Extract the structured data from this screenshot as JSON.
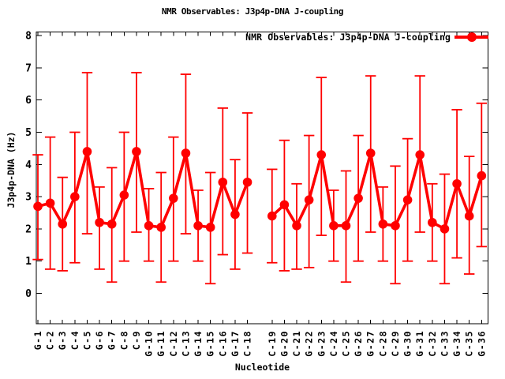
{
  "chart_data": {
    "type": "line",
    "title": "NMR Observables: J3p4p-DNA J-coupling",
    "xlabel": "Nucleotide",
    "ylabel": "J3p4p-DNA (Hz)",
    "legend": {
      "label": "NMR Observables: J3p4p-DNA J-coupling",
      "position": "top-right-inside",
      "marker": "filled-circle-on-line"
    },
    "ylim": [
      0,
      8
    ],
    "yticks": [
      0,
      1,
      2,
      3,
      4,
      5,
      6,
      7,
      8
    ],
    "grid": false,
    "error_bars": true,
    "colors": {
      "series": "#ff0000",
      "axis": "#000000",
      "background": "#ffffff"
    },
    "gap_after_category": "C-18",
    "categories": [
      "G-1",
      "C-2",
      "G-3",
      "C-4",
      "C-5",
      "G-6",
      "G-7",
      "C-8",
      "C-9",
      "G-10",
      "G-11",
      "C-12",
      "C-13",
      "G-14",
      "G-15",
      "C-16",
      "G-17",
      "C-18",
      "C-19",
      "G-20",
      "C-21",
      "G-22",
      "G-23",
      "C-24",
      "C-25",
      "G-26",
      "G-27",
      "C-28",
      "C-29",
      "G-30",
      "G-31",
      "C-32",
      "C-33",
      "G-34",
      "C-35",
      "G-36"
    ],
    "series": [
      {
        "name": "NMR Observables: J3p4p-DNA J-coupling",
        "values": [
          2.7,
          2.8,
          2.15,
          3.0,
          4.4,
          2.2,
          2.15,
          3.05,
          4.4,
          2.1,
          2.05,
          2.95,
          4.35,
          2.1,
          2.05,
          3.45,
          2.45,
          3.45,
          2.4,
          2.75,
          2.1,
          2.9,
          4.3,
          2.1,
          2.1,
          2.95,
          4.35,
          2.15,
          2.1,
          2.9,
          4.3,
          2.2,
          2.0,
          3.4,
          2.4,
          3.65
        ],
        "err_low": [
          1.05,
          0.75,
          0.7,
          0.95,
          1.85,
          0.75,
          0.35,
          1.0,
          1.9,
          1.0,
          0.35,
          1.0,
          1.85,
          1.0,
          0.3,
          1.2,
          0.75,
          1.25,
          0.95,
          0.7,
          0.75,
          0.8,
          1.8,
          1.0,
          0.35,
          1.0,
          1.9,
          1.0,
          0.3,
          1.0,
          1.9,
          1.0,
          0.3,
          1.1,
          0.6,
          1.45
        ],
        "err_high": [
          4.3,
          4.85,
          3.6,
          5.0,
          6.85,
          3.3,
          3.9,
          5.0,
          6.85,
          3.25,
          3.75,
          4.85,
          6.8,
          3.2,
          3.75,
          5.75,
          4.15,
          5.6,
          3.85,
          4.75,
          3.4,
          4.9,
          6.7,
          3.2,
          3.8,
          4.9,
          6.75,
          3.3,
          3.95,
          4.8,
          6.75,
          3.4,
          3.7,
          5.7,
          4.25,
          5.9
        ]
      }
    ]
  }
}
